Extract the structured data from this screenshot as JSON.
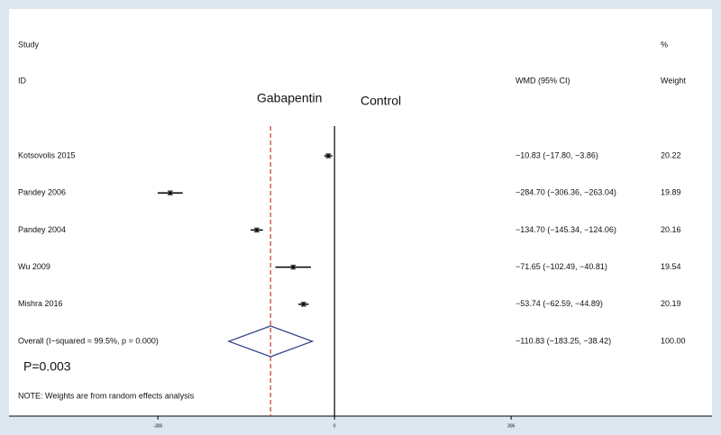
{
  "chart_data": {
    "type": "forest",
    "headers": {
      "study": "Study",
      "id": "ID",
      "pct": "%",
      "ci": "WMD (95% CI)",
      "weight": "Weight"
    },
    "left_label": "Gabapentin",
    "right_label": "Control",
    "categories": [
      "Kotsovolis 2015",
      "Pandey 2006",
      "Pandey 2004",
      "Wu 2009",
      "Mishra 2016"
    ],
    "estimates": [
      -10.83,
      -284.7,
      -134.7,
      -71.65,
      -53.74
    ],
    "lower": [
      -17.8,
      -306.36,
      -145.34,
      -102.49,
      -62.59
    ],
    "upper": [
      -3.86,
      -263.04,
      -124.06,
      -40.81,
      -44.89
    ],
    "ci_labels": [
      "−10.83 (−17.80, −3.86)",
      "−284.70 (−306.36, −263.04)",
      "−134.70 (−145.34, −124.06)",
      "−71.65 (−102.49, −40.81)",
      "−53.74 (−62.59, −44.89)"
    ],
    "weights": [
      20.22,
      19.89,
      20.16,
      19.54,
      20.19
    ],
    "overall": {
      "label": "Overall  (I−squared = 99.5%, p = 0.000)",
      "estimate": -110.83,
      "lower": -183.25,
      "upper": -38.42,
      "ci_label": "−110.83 (−183.25, −38.42)",
      "weight": {
        "value": 100,
        "label": "100.00"
      }
    },
    "p_value_label": "P=0.003",
    "note": "NOTE: Weights are from random effects analysis",
    "xlim": [
      -564,
      654
    ],
    "xticks": [
      -306,
      0,
      306
    ],
    "color": "#000000",
    "diamond_color": "#3b4a8c",
    "reference_color": "#c0392b"
  }
}
